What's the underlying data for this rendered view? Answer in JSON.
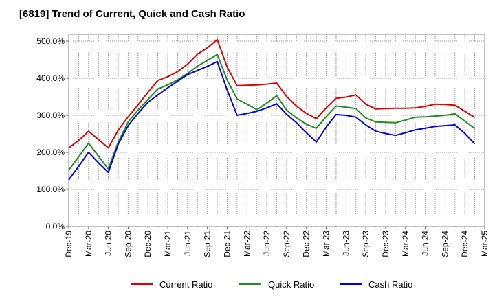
{
  "chart_data": {
    "type": "line",
    "title": "[6819]  Trend of Current, Quick and Cash Ratio",
    "xlabel": "",
    "ylabel": "",
    "ylim": [
      0,
      500
    ],
    "y_ticks": [
      0,
      100,
      200,
      300,
      400,
      500
    ],
    "y_tick_labels": [
      "0.0%",
      "100.0%",
      "200.0%",
      "300.0%",
      "400.0%",
      "500.0%"
    ],
    "x_tick_labels": [
      "Dec-19",
      "Mar-20",
      "Jun-20",
      "Sep-20",
      "Dec-20",
      "Mar-21",
      "Jun-21",
      "Sep-21",
      "Dec-21",
      "Mar-22",
      "Jun-22",
      "Sep-22",
      "Dec-22",
      "Mar-23",
      "Jun-23",
      "Sep-23",
      "Dec-23",
      "Mar-24",
      "Jun-24",
      "Sep-24",
      "Dec-24",
      "Mar-25"
    ],
    "grid": true,
    "legend_position": "bottom",
    "series": [
      {
        "name": "Current Ratio",
        "color": "#e00000",
        "values": [
          212,
          232,
          257,
          235,
          212,
          260,
          296,
          328,
          362,
          394,
          404,
          418,
          438,
          465,
          482,
          504,
          430,
          380,
          381,
          382,
          384,
          387,
          351,
          325,
          305,
          291,
          320,
          346,
          349,
          355,
          330,
          317,
          318,
          319,
          319,
          320,
          324,
          330,
          329,
          327,
          311,
          294
        ]
      },
      {
        "name": "Quick Ratio",
        "color": "#1f8c1f",
        "values": [
          152,
          188,
          225,
          190,
          155,
          228,
          282,
          314,
          343,
          371,
          382,
          396,
          413,
          433,
          448,
          464,
          395,
          344,
          330,
          315,
          333,
          353,
          314,
          293,
          276,
          265,
          296,
          325,
          322,
          318,
          293,
          282,
          281,
          280,
          287,
          295,
          296,
          298,
          300,
          304,
          284,
          264
        ]
      },
      {
        "name": "Cash Ratio",
        "color": "#0000e0",
        "values": [
          126,
          162,
          200,
          172,
          146,
          222,
          272,
          305,
          335,
          355,
          374,
          392,
          410,
          421,
          432,
          445,
          368,
          300,
          305,
          311,
          320,
          331,
          303,
          280,
          253,
          228,
          268,
          302,
          300,
          295,
          274,
          257,
          251,
          246,
          253,
          261,
          265,
          270,
          272,
          274,
          251,
          223
        ]
      }
    ]
  }
}
